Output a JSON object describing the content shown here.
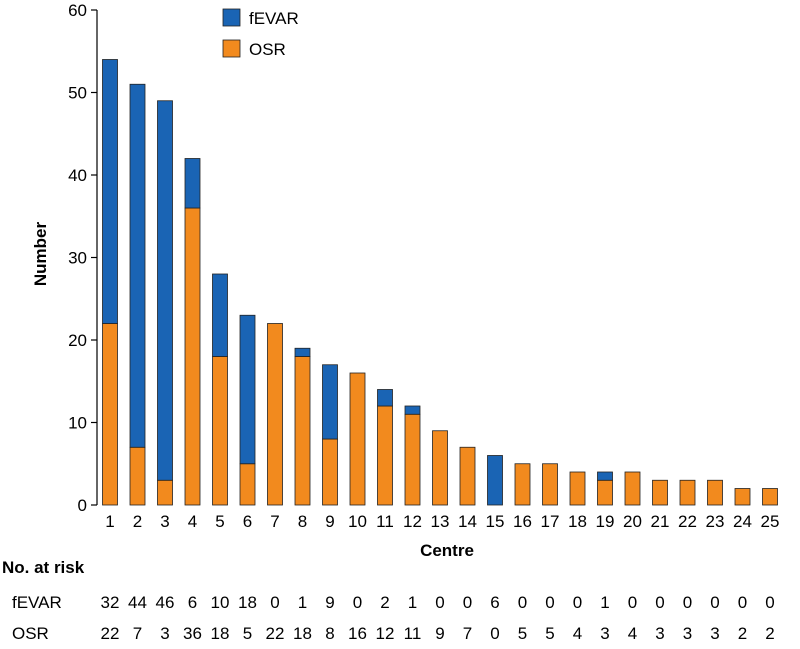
{
  "chart_data": {
    "type": "bar",
    "stacked": true,
    "title": "",
    "xlabel": "Centre",
    "ylabel": "Number",
    "ylim": [
      0,
      60
    ],
    "yticks": [
      0,
      10,
      20,
      30,
      40,
      50,
      60
    ],
    "categories": [
      "1",
      "2",
      "3",
      "4",
      "5",
      "6",
      "7",
      "8",
      "9",
      "10",
      "11",
      "12",
      "13",
      "14",
      "15",
      "16",
      "17",
      "18",
      "19",
      "20",
      "21",
      "22",
      "23",
      "24",
      "25"
    ],
    "series": [
      {
        "name": "OSR",
        "color": "#f28a1e",
        "values": [
          22,
          7,
          3,
          36,
          18,
          5,
          22,
          18,
          8,
          16,
          12,
          11,
          9,
          7,
          0,
          5,
          5,
          4,
          3,
          4,
          3,
          3,
          3,
          2,
          2
        ]
      },
      {
        "name": "fEVAR",
        "color": "#1a64b4",
        "values": [
          32,
          44,
          46,
          6,
          10,
          18,
          0,
          1,
          9,
          0,
          2,
          1,
          0,
          0,
          6,
          0,
          0,
          0,
          1,
          0,
          0,
          0,
          0,
          0,
          0
        ]
      }
    ],
    "legend": {
      "position": "top-center",
      "order": [
        "fEVAR",
        "OSR"
      ]
    },
    "grid": false
  },
  "risk_table": {
    "title": "No. at risk",
    "rows": [
      {
        "label": "fEVAR",
        "values": [
          32,
          44,
          46,
          6,
          10,
          18,
          0,
          1,
          9,
          0,
          2,
          1,
          0,
          0,
          6,
          0,
          0,
          0,
          1,
          0,
          0,
          0,
          0,
          0,
          0
        ]
      },
      {
        "label": "OSR",
        "values": [
          22,
          7,
          3,
          36,
          18,
          5,
          22,
          18,
          8,
          16,
          12,
          11,
          9,
          7,
          0,
          5,
          5,
          4,
          3,
          4,
          3,
          3,
          3,
          2,
          2
        ]
      }
    ]
  }
}
